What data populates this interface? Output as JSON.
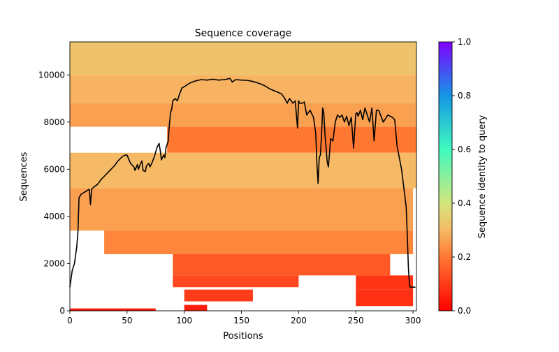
{
  "chart_data": {
    "type": "heatmap",
    "title": "Sequence coverage",
    "xlabel": "Positions",
    "ylabel": "Sequences",
    "xlim": [
      0,
      303
    ],
    "ylim": [
      0,
      11400
    ],
    "x_ticks": [
      0,
      50,
      100,
      150,
      200,
      250,
      300
    ],
    "y_ticks": [
      0,
      2000,
      4000,
      6000,
      8000,
      10000
    ],
    "colorbar": {
      "label": "Sequence identity to query",
      "range": [
        0.0,
        1.0
      ],
      "ticks": [
        "0.0",
        "0.2",
        "0.4",
        "0.6",
        "0.8",
        "1.0"
      ],
      "colormap": "rainbow_r"
    },
    "coverage_line": {
      "name": "",
      "color": "#000000",
      "x": [
        0,
        2,
        4,
        6,
        7,
        8,
        10,
        12,
        15,
        17,
        18,
        19,
        21,
        24,
        27,
        30,
        33,
        36,
        39,
        42,
        45,
        48,
        50,
        53,
        56,
        57,
        59,
        60,
        61,
        63,
        64,
        66,
        67,
        69,
        70,
        72,
        74,
        76,
        78,
        79,
        80,
        82,
        83,
        84,
        86,
        87,
        88,
        89,
        90,
        92,
        94,
        96,
        98,
        100,
        103,
        106,
        110,
        115,
        120,
        125,
        130,
        135,
        140,
        142,
        145,
        150,
        155,
        160,
        165,
        170,
        175,
        180,
        185,
        188,
        190,
        192,
        195,
        197,
        199,
        200,
        201,
        203,
        205,
        207,
        210,
        213,
        215,
        216,
        217,
        218,
        219,
        220,
        221,
        222,
        223,
        224,
        225,
        226,
        228,
        230,
        232,
        234,
        236,
        238,
        240,
        242,
        244,
        246,
        248,
        250,
        251,
        252,
        254,
        256,
        258,
        260,
        262,
        264,
        266,
        268,
        270,
        274,
        278,
        282,
        284,
        286,
        288,
        290,
        292,
        294,
        295,
        296,
        297,
        298,
        299,
        300,
        301,
        302
      ],
      "y": [
        1000,
        1700,
        2000,
        2700,
        3300,
        4800,
        4950,
        5000,
        5100,
        5150,
        4500,
        5150,
        5250,
        5350,
        5550,
        5700,
        5850,
        6000,
        6150,
        6350,
        6500,
        6600,
        6600,
        6250,
        6100,
        5950,
        6200,
        6000,
        6150,
        6350,
        5950,
        5900,
        6150,
        6250,
        6100,
        6300,
        6550,
        6900,
        7100,
        6800,
        6400,
        6600,
        6500,
        6900,
        7200,
        7900,
        8400,
        8550,
        8900,
        9000,
        8900,
        9200,
        9450,
        9500,
        9600,
        9680,
        9750,
        9800,
        9780,
        9820,
        9780,
        9800,
        9850,
        9700,
        9800,
        9780,
        9770,
        9720,
        9650,
        9550,
        9400,
        9300,
        9200,
        9000,
        8800,
        9000,
        8800,
        8900,
        7750,
        8900,
        8800,
        8800,
        8850,
        8300,
        8500,
        8200,
        7500,
        6200,
        5400,
        6500,
        6600,
        7400,
        8600,
        8400,
        7500,
        6900,
        6300,
        6100,
        7300,
        7200,
        8000,
        8300,
        8200,
        8300,
        8000,
        8250,
        7850,
        8200,
        6900,
        8350,
        8400,
        8250,
        8500,
        8100,
        8600,
        8300,
        8000,
        8600,
        7200,
        8500,
        8500,
        8000,
        8300,
        8200,
        8100,
        7000,
        6500,
        6000,
        5200,
        4400,
        3200,
        1800,
        1050,
        1000,
        1000,
        1000,
        1000,
        1000,
        1000
      ]
    },
    "identity_bands": [
      {
        "n0": 10000,
        "n1": 11400,
        "x0": 0,
        "x1": 303,
        "identity": 0.32
      },
      {
        "n0": 8800,
        "n1": 10000,
        "x0": 0,
        "x1": 303,
        "identity": 0.29
      },
      {
        "n0": 7800,
        "n1": 8800,
        "x0": 0,
        "x1": 303,
        "identity": 0.26
      },
      {
        "n0": 6700,
        "n1": 7800,
        "x0": 85,
        "x1": 303,
        "identity": 0.2
      },
      {
        "n0": 5200,
        "n1": 6700,
        "x0": 0,
        "x1": 303,
        "identity": 0.3
      },
      {
        "n0": 3400,
        "n1": 5200,
        "x0": 0,
        "x1": 300,
        "identity": 0.26
      },
      {
        "n0": 2400,
        "n1": 3400,
        "x0": 30,
        "x1": 300,
        "identity": 0.22
      },
      {
        "n0": 1500,
        "n1": 2400,
        "x0": 90,
        "x1": 280,
        "identity": 0.15
      },
      {
        "n0": 1000,
        "n1": 1500,
        "x0": 90,
        "x1": 200,
        "identity": 0.12
      },
      {
        "n0": 900,
        "n1": 1500,
        "x0": 250,
        "x1": 300,
        "identity": 0.09
      },
      {
        "n0": 200,
        "n1": 900,
        "x0": 250,
        "x1": 300,
        "identity": 0.08
      },
      {
        "n0": 400,
        "n1": 900,
        "x0": 100,
        "x1": 160,
        "identity": 0.1
      },
      {
        "n0": 0,
        "n1": 250,
        "x0": 100,
        "x1": 120,
        "identity": 0.05
      },
      {
        "n0": 0,
        "n1": 100,
        "x0": 0,
        "x1": 75,
        "identity": 0.04
      }
    ]
  }
}
